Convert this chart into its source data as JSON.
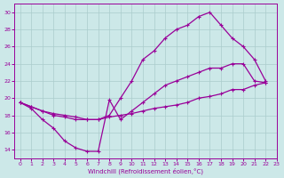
{
  "xlabel": "Windchill (Refroidissement éolien,°C)",
  "bg_color": "#cce8e8",
  "line_color": "#990099",
  "grid_color": "#aacccc",
  "xlim": [
    -0.5,
    23
  ],
  "ylim": [
    13,
    31
  ],
  "xticks": [
    0,
    1,
    2,
    3,
    4,
    5,
    6,
    7,
    8,
    9,
    10,
    11,
    12,
    13,
    14,
    15,
    16,
    17,
    18,
    19,
    20,
    21,
    22,
    23
  ],
  "yticks": [
    14,
    16,
    18,
    20,
    22,
    24,
    26,
    28,
    30
  ],
  "curve_dip": {
    "x": [
      0,
      1,
      2,
      3,
      4,
      5,
      6,
      7,
      8,
      9,
      10,
      11,
      12,
      13,
      14,
      15,
      16,
      17,
      18,
      19,
      20,
      21,
      22
    ],
    "y": [
      19.5,
      18.8,
      17.5,
      16.5,
      15.0,
      14.2,
      13.8,
      13.8,
      19.8,
      17.5,
      18.5,
      19.5,
      20.5,
      21.5,
      22.0,
      22.5,
      23.0,
      23.5,
      23.5,
      24.0,
      24.0,
      22.0,
      21.8
    ]
  },
  "curve_top": {
    "x": [
      0,
      1,
      2,
      3,
      4,
      5,
      6,
      7,
      8,
      9,
      10,
      11,
      12,
      13,
      14,
      15,
      16,
      17,
      18,
      19,
      20,
      21,
      22
    ],
    "y": [
      19.5,
      19.0,
      18.5,
      18.0,
      17.8,
      17.5,
      17.5,
      17.5,
      18.0,
      20.0,
      22.0,
      24.5,
      25.5,
      27.0,
      28.0,
      28.5,
      29.5,
      30.0,
      28.5,
      27.0,
      26.0,
      24.5,
      22.0
    ]
  },
  "curve_linear": {
    "x": [
      0,
      1,
      2,
      3,
      4,
      5,
      6,
      7,
      8,
      9,
      10,
      11,
      12,
      13,
      14,
      15,
      16,
      17,
      18,
      19,
      20,
      21,
      22
    ],
    "y": [
      19.5,
      19.0,
      18.5,
      18.2,
      18.0,
      17.8,
      17.5,
      17.5,
      17.8,
      18.0,
      18.2,
      18.5,
      18.8,
      19.0,
      19.2,
      19.5,
      20.0,
      20.2,
      20.5,
      21.0,
      21.0,
      21.5,
      21.8
    ]
  }
}
